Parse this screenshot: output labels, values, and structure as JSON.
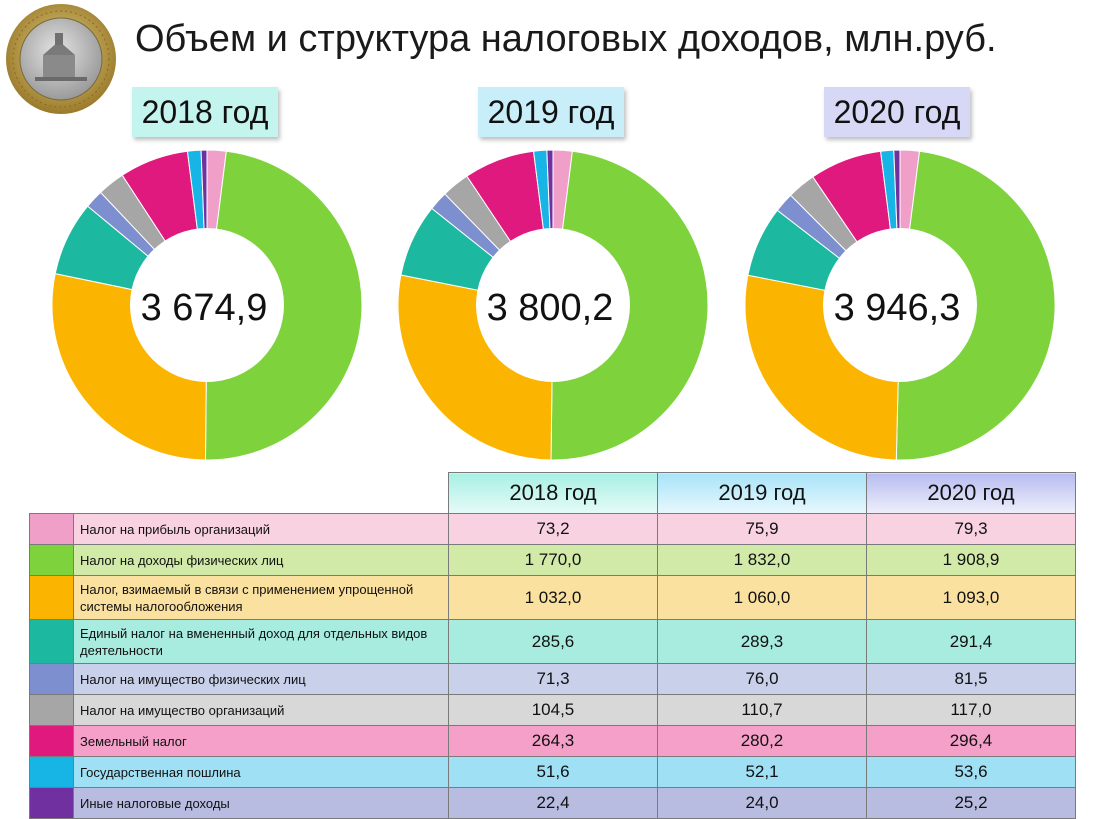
{
  "title": "Объем и структура налоговых доходов, млн.руб.",
  "years": [
    "2018 год",
    "2019 год",
    "2020 год"
  ],
  "totals": [
    "3 674,9",
    "3 800,2",
    "3 946,3"
  ],
  "rows": [
    {
      "name": "Налог на прибыль организаций",
      "color": "#f0a0c8",
      "bg": "#f9d2e2",
      "values": [
        "73,2",
        "75,9",
        "79,3"
      ]
    },
    {
      "name": "Налог на доходы физических лиц",
      "color": "#7ed23c",
      "bg": "#d2eaa8",
      "values": [
        "1 770,0",
        "1 832,0",
        "1 908,9"
      ]
    },
    {
      "name": "Налог, взимаемый в связи с применением упрощенной системы налогообложения",
      "color": "#fbb400",
      "bg": "#fbe1a0",
      "values": [
        "1 032,0",
        "1 060,0",
        "1 093,0"
      ]
    },
    {
      "name": "Единый налог на вмененный доход для отдельных видов деятельности",
      "color": "#1cb8a0",
      "bg": "#a8ece0",
      "values": [
        "285,6",
        "289,3",
        "291,4"
      ]
    },
    {
      "name": "Налог на имущество физических лиц",
      "color": "#7d8fce",
      "bg": "#c8d0ea",
      "values": [
        "71,3",
        "76,0",
        "81,5"
      ]
    },
    {
      "name": "Налог на имущество организаций",
      "color": "#a6a6a6",
      "bg": "#d8d8d8",
      "values": [
        "104,5",
        "110,7",
        "117,0"
      ]
    },
    {
      "name": "Земельный налог",
      "color": "#e0197f",
      "bg": "#f4a0c8",
      "values": [
        "264,3",
        "280,2",
        "296,4"
      ]
    },
    {
      "name": "Государственная пошлина",
      "color": "#17b4e6",
      "bg": "#a0e0f4",
      "values": [
        "51,6",
        "52,1",
        "53,6"
      ]
    },
    {
      "name": "Иные налоговые доходы",
      "color": "#7030a0",
      "bg": "#b8bce0",
      "values": [
        "22,4",
        "24,0",
        "25,2"
      ]
    }
  ],
  "year_box_colors": [
    "#c4f4ee",
    "#c8eefa",
    "#d6d8f6"
  ],
  "chart_data": {
    "type": "pie",
    "categories": [
      "Налог на прибыль организаций",
      "Налог на доходы физических лиц",
      "Налог, взимаемый в связи с применением упрощенной системы налогообложения",
      "Единый налог на вмененный доход для отдельных видов деятельности",
      "Налог на имущество физических лиц",
      "Налог на имущество организаций",
      "Земельный налог",
      "Государственная пошлина",
      "Иные налоговые доходы"
    ],
    "series": [
      {
        "name": "2018 год",
        "values": [
          73.2,
          1770.0,
          1032.0,
          285.6,
          71.3,
          104.5,
          264.3,
          51.6,
          22.4
        ]
      },
      {
        "name": "2019 год",
        "values": [
          75.9,
          1832.0,
          1060.0,
          289.3,
          76.0,
          110.7,
          280.2,
          52.1,
          24.0
        ]
      },
      {
        "name": "2020 год",
        "values": [
          79.3,
          1908.9,
          1093.0,
          291.4,
          81.5,
          117.0,
          296.4,
          53.6,
          25.2
        ]
      }
    ]
  }
}
